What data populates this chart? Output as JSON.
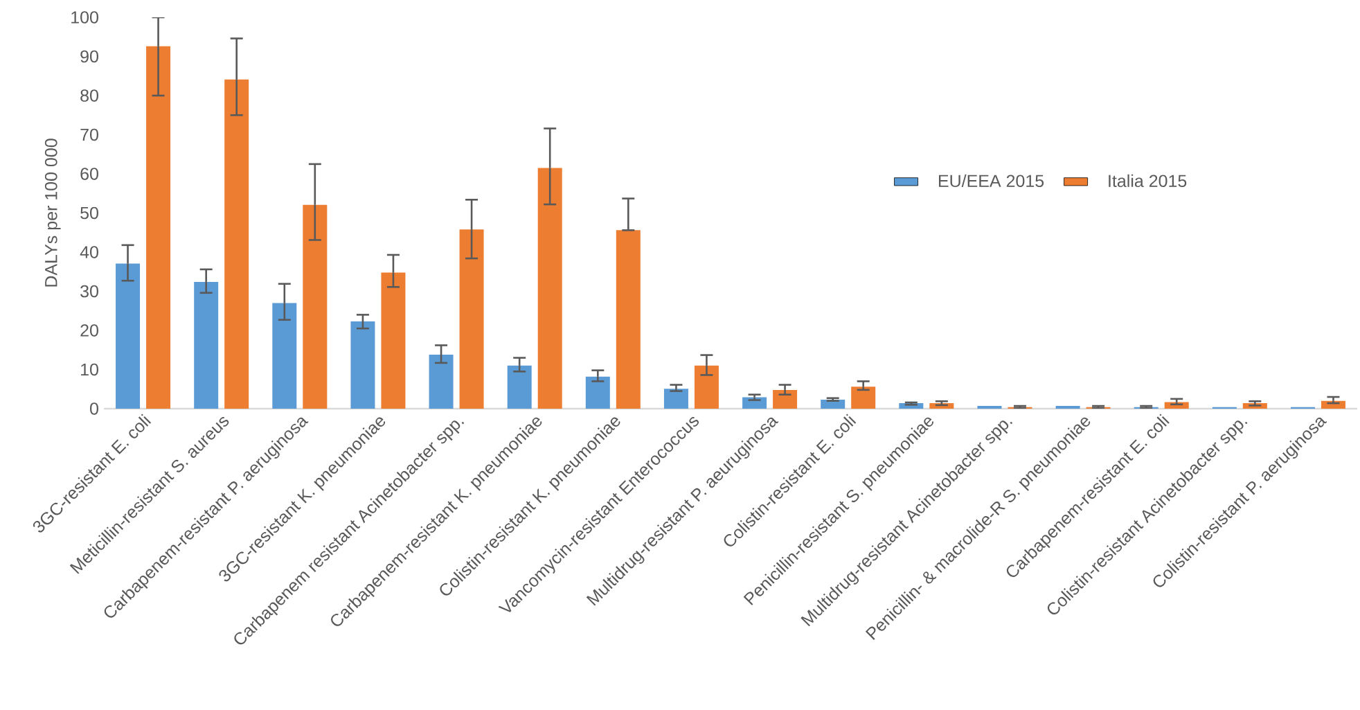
{
  "chart_data": {
    "type": "bar",
    "ylabel": "DALYs per 100 000",
    "categories": [
      "3GC-resistant E. coli",
      "Meticillin-resistant S. aureus",
      "Carbapenem-resistant P. aeruginosa",
      "3GC-resistant K. pneumoniae",
      "Carbapenem resistant Acinetobacter spp.",
      "Carbapenem-resistant K. pneumoniae",
      "Colistin-resistant K. pneumoniae",
      "Vancomycin-resistant Enterococcus",
      "Multidrug-resistant P. aeuruginosa",
      "Colistin-resistant E. coli",
      "Penicillin-resistant S. pneumoniae",
      "Multidrug-resistant Acinetobacter spp.",
      "Penicillin- & macrolide-R S. pneumoniae",
      "Carbapenem-resistant E. coli",
      "Colistin-resistant Acinetobacter spp.",
      "Colistin-resistant P. aeruginosa"
    ],
    "series": [
      {
        "name": "EU/EEA 2015",
        "color": "#5b9bd5",
        "values": [
          37.1,
          32.4,
          27.0,
          22.3,
          13.8,
          11.0,
          8.2,
          5.1,
          2.9,
          2.3,
          1.4,
          0.7,
          0.7,
          0.4,
          0.4,
          0.4
        ],
        "errors": [
          [
            32.7,
            41.8
          ],
          [
            29.6,
            35.6
          ],
          [
            22.7,
            31.9
          ],
          [
            20.5,
            24.0
          ],
          [
            11.7,
            16.2
          ],
          [
            9.5,
            13.0
          ],
          [
            7.0,
            9.8
          ],
          [
            4.5,
            6.1
          ],
          [
            2.2,
            3.6
          ],
          [
            2.0,
            2.7
          ],
          [
            1.0,
            1.6
          ],
          null,
          null,
          [
            0.2,
            0.7
          ],
          null,
          null
        ]
      },
      {
        "name": "Italia 2015",
        "color": "#ed7d31",
        "values": [
          92.6,
          84.1,
          52.1,
          34.8,
          45.8,
          61.5,
          45.6,
          11.0,
          4.8,
          5.6,
          1.4,
          0.4,
          0.4,
          1.7,
          1.4,
          2.0
        ],
        "errors": [
          [
            80.0,
            100.0
          ],
          [
            75.0,
            94.6
          ],
          [
            43.1,
            62.5
          ],
          [
            31.1,
            39.3
          ],
          [
            38.4,
            53.4
          ],
          [
            52.2,
            71.6
          ],
          [
            45.6,
            53.7
          ],
          [
            8.6,
            13.7
          ],
          [
            3.6,
            6.1
          ],
          [
            4.8,
            7.0
          ],
          [
            0.9,
            1.9
          ],
          [
            0.2,
            0.7
          ],
          [
            0.2,
            0.7
          ],
          [
            1.1,
            2.5
          ],
          [
            0.8,
            1.9
          ],
          [
            1.4,
            3.0
          ]
        ]
      }
    ],
    "ylim": [
      0,
      100
    ],
    "yticks": [
      0,
      10,
      20,
      30,
      40,
      50,
      60,
      70,
      80,
      90,
      100
    ],
    "grid": false,
    "legend": "right"
  }
}
